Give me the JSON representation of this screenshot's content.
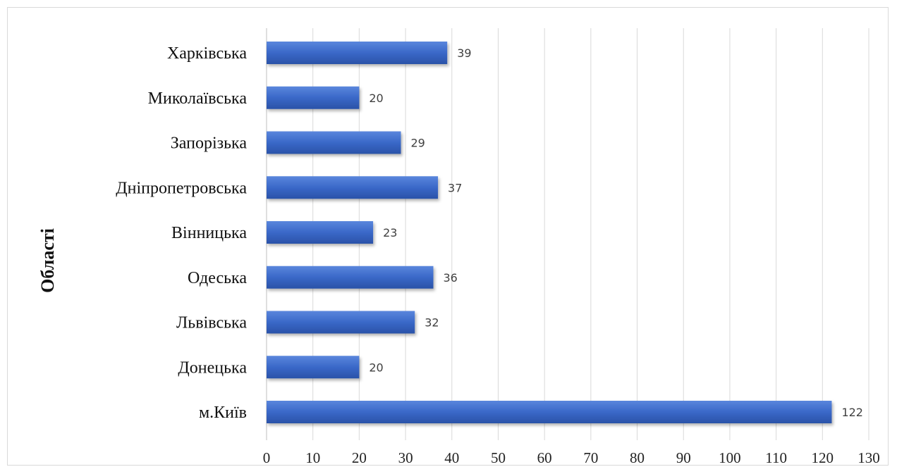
{
  "chart_data": {
    "type": "bar",
    "orientation": "horizontal",
    "title": "",
    "xlabel": "",
    "ylabel": "Області",
    "categories": [
      "Харківська",
      "Миколаївська",
      "Запорізька",
      "Дніпропетровська",
      "Вінницька",
      "Одеська",
      "Львівська",
      "Донецька",
      "м.Київ"
    ],
    "values": [
      39,
      20,
      29,
      37,
      23,
      36,
      32,
      20,
      122
    ],
    "xlim": [
      0,
      130
    ],
    "xticks": [
      "0",
      "10",
      "20",
      "30",
      "40",
      "50",
      "60",
      "70",
      "80",
      "90",
      "100",
      "110",
      "120",
      "130"
    ],
    "grid": "vertical",
    "legend": "none",
    "bar_color": "#3a68c8",
    "data_labels": [
      "39",
      "20",
      "29",
      "37",
      "23",
      "36",
      "32",
      "20",
      "122"
    ]
  }
}
